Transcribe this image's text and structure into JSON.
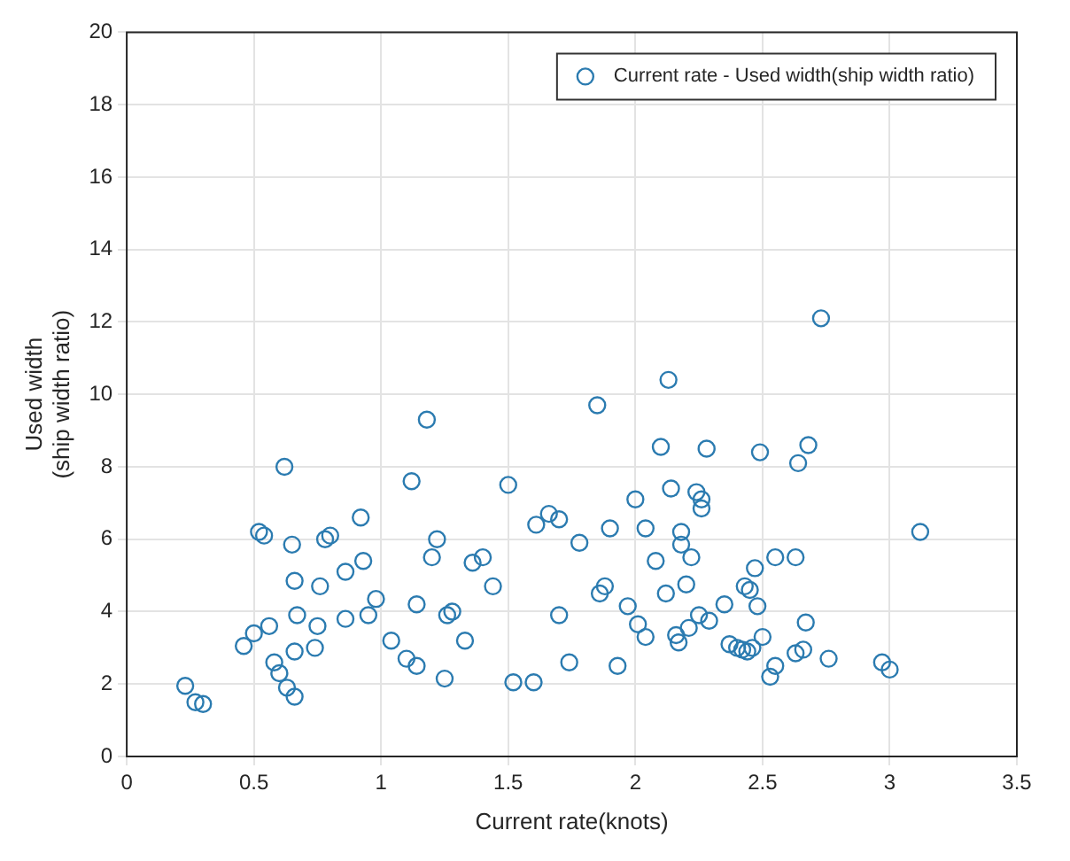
{
  "chart_data": {
    "type": "scatter",
    "xlabel": "Current rate(knots)",
    "ylabel": "Used width\n(ship width ratio)",
    "xlim": [
      0,
      3.5
    ],
    "xticks": [
      0,
      0.5,
      1,
      1.5,
      2,
      2.5,
      3,
      3.5
    ],
    "ylim": [
      0,
      20
    ],
    "yticks": [
      0,
      2,
      4,
      6,
      8,
      10,
      12,
      14,
      16,
      18,
      20
    ],
    "grid": true,
    "legend": "top right",
    "marker": "circle",
    "series": [
      {
        "name": "Current rate - Used width(ship width ratio)",
        "color": "#2b7bb0",
        "x": [
          0.23,
          0.27,
          0.3,
          0.46,
          0.5,
          0.52,
          0.54,
          0.56,
          0.58,
          0.6,
          0.62,
          0.63,
          0.65,
          0.66,
          0.66,
          0.66,
          0.67,
          0.74,
          0.75,
          0.76,
          0.78,
          0.8,
          0.86,
          0.86,
          0.92,
          0.93,
          0.95,
          0.98,
          1.04,
          1.1,
          1.12,
          1.14,
          1.14,
          1.18,
          1.2,
          1.22,
          1.25,
          1.26,
          1.28,
          1.33,
          1.36,
          1.4,
          1.44,
          1.5,
          1.52,
          1.6,
          1.61,
          1.66,
          1.7,
          1.7,
          1.74,
          1.78,
          1.85,
          1.86,
          1.88,
          1.9,
          1.93,
          1.97,
          2.0,
          2.01,
          2.04,
          2.04,
          2.08,
          2.1,
          2.12,
          2.13,
          2.14,
          2.16,
          2.17,
          2.18,
          2.18,
          2.2,
          2.21,
          2.22,
          2.24,
          2.25,
          2.26,
          2.26,
          2.28,
          2.29,
          2.35,
          2.37,
          2.4,
          2.42,
          2.43,
          2.44,
          2.45,
          2.46,
          2.47,
          2.48,
          2.49,
          2.5,
          2.53,
          2.55,
          2.55,
          2.63,
          2.63,
          2.64,
          2.66,
          2.67,
          2.68,
          2.73,
          2.76,
          2.97,
          3.0,
          3.12
        ],
        "values": [
          1.95,
          1.5,
          1.45,
          3.05,
          3.4,
          6.2,
          6.1,
          3.6,
          2.6,
          2.3,
          8.0,
          1.9,
          5.85,
          1.65,
          2.9,
          4.85,
          3.9,
          3.0,
          3.6,
          4.7,
          6.0,
          6.1,
          5.1,
          3.8,
          6.6,
          5.4,
          3.9,
          4.35,
          3.2,
          2.7,
          7.6,
          2.5,
          4.2,
          9.3,
          5.5,
          6.0,
          2.15,
          3.9,
          4.0,
          3.2,
          5.35,
          5.5,
          4.7,
          7.5,
          2.05,
          2.05,
          6.4,
          6.7,
          3.9,
          6.55,
          2.6,
          5.9,
          9.7,
          4.5,
          4.7,
          6.3,
          2.5,
          4.15,
          7.1,
          3.65,
          3.3,
          6.3,
          5.4,
          8.55,
          4.5,
          10.4,
          7.4,
          3.35,
          3.15,
          5.85,
          6.2,
          4.75,
          3.55,
          5.5,
          7.3,
          3.9,
          6.85,
          7.1,
          8.5,
          3.75,
          4.2,
          3.1,
          3.0,
          2.95,
          4.7,
          2.9,
          4.6,
          3.0,
          5.2,
          4.15,
          8.4,
          3.3,
          2.2,
          5.5,
          2.5,
          2.85,
          5.5,
          8.1,
          2.95,
          3.7,
          8.6,
          12.1,
          2.7,
          2.6,
          2.4,
          6.2
        ]
      }
    ]
  }
}
